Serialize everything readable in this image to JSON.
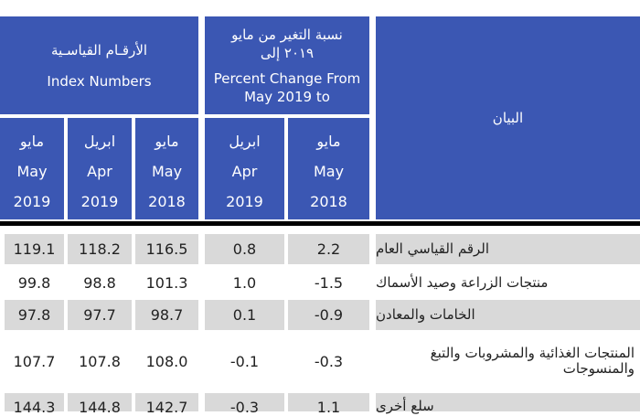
{
  "header": {
    "index_numbers_ar": "الأرقـام القياسـية",
    "index_numbers_en": "Index Numbers",
    "pct_change_ar_1": "نسبة التغير من مايو",
    "pct_change_ar_2": "٢٠١٩ إلى",
    "pct_change_en_1": "Percent Change From",
    "pct_change_en_2": "May 2019 to",
    "item_label": "البيان",
    "columns": [
      {
        "ar": "مايو",
        "en": "May",
        "year": "2019"
      },
      {
        "ar": "ابريل",
        "en": "Apr",
        "year": "2019"
      },
      {
        "ar": "مايو",
        "en": "May",
        "year": "2018"
      },
      {
        "ar": "ابريل",
        "en": "Apr",
        "year": "2019"
      },
      {
        "ar": "مايو",
        "en": "May",
        "year": "2018"
      }
    ]
  },
  "rows": [
    {
      "label": "الرقم القياسي العام",
      "values": [
        "119.1",
        "118.2",
        "116.5",
        "0.8",
        "2.2"
      ]
    },
    {
      "label": "منتجات الزراعة وصيد الأسماك",
      "values": [
        "99.8",
        "98.8",
        "101.3",
        "1.0",
        "-1.5"
      ]
    },
    {
      "label": "الخامات والمعادن",
      "values": [
        "97.8",
        "97.7",
        "98.7",
        "0.1",
        "-0.9"
      ]
    },
    {
      "label": "المنتجات الغذائية والمشروبات والتبغ والمنسوجات",
      "values": [
        "107.7",
        "107.8",
        "108.0",
        "-0.1",
        "-0.3"
      ]
    },
    {
      "label": "سلع أخرى",
      "values": [
        "144.3",
        "144.8",
        "142.7",
        "-0.3",
        "1.1"
      ]
    }
  ]
}
